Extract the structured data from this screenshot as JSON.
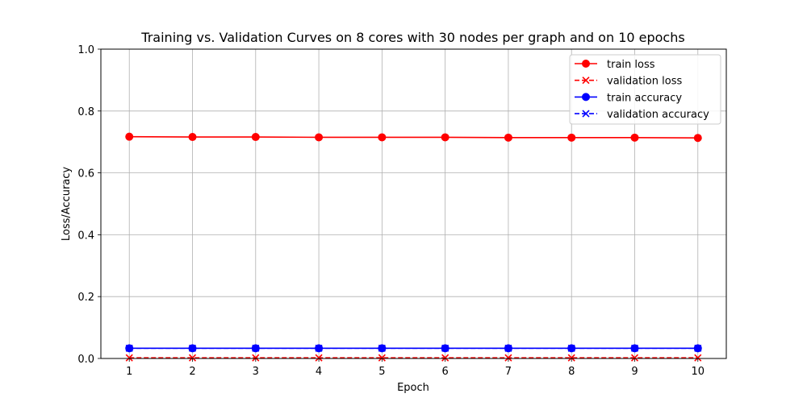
{
  "chart_data": {
    "type": "line",
    "title": "Training vs. Validation Curves on 8 cores with 30 nodes per graph and on 10 epochs",
    "xlabel": "Epoch",
    "ylabel": "Loss/Accuracy",
    "x": [
      1,
      2,
      3,
      4,
      5,
      6,
      7,
      8,
      9,
      10
    ],
    "xticks": [
      "1",
      "2",
      "3",
      "4",
      "5",
      "6",
      "7",
      "8",
      "9",
      "10"
    ],
    "yticks": [
      "0.0",
      "0.2",
      "0.4",
      "0.6",
      "0.8",
      "1.0"
    ],
    "ylim": [
      0,
      1
    ],
    "grid": true,
    "legend_position": "top-right",
    "series": [
      {
        "name": "train loss",
        "color": "#ff0000",
        "line_style": "solid",
        "marker": "circle",
        "values": [
          0.717,
          0.716,
          0.716,
          0.715,
          0.715,
          0.715,
          0.714,
          0.714,
          0.714,
          0.713
        ]
      },
      {
        "name": "validation loss",
        "color": "#ff0000",
        "line_style": "dashed",
        "marker": "x",
        "values": [
          0.002,
          0.002,
          0.002,
          0.002,
          0.002,
          0.002,
          0.002,
          0.002,
          0.002,
          0.002
        ]
      },
      {
        "name": "train accuracy",
        "color": "#0000ff",
        "line_style": "solid",
        "marker": "circle",
        "values": [
          0.033,
          0.033,
          0.033,
          0.033,
          0.033,
          0.033,
          0.033,
          0.033,
          0.033,
          0.033
        ]
      },
      {
        "name": "validation accuracy",
        "color": "#0000ff",
        "line_style": "dashed",
        "marker": "x",
        "values": [
          0.033,
          0.033,
          0.033,
          0.033,
          0.033,
          0.033,
          0.033,
          0.033,
          0.033,
          0.033
        ]
      }
    ]
  }
}
